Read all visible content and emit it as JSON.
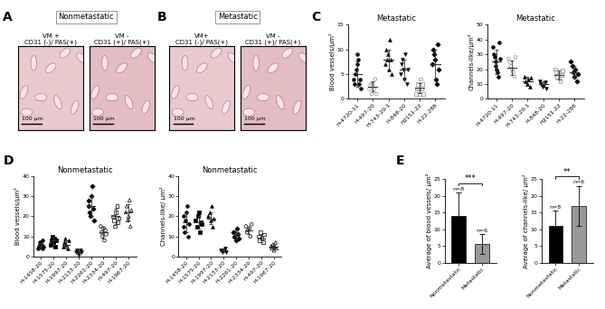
{
  "images": [
    {
      "panel": "A",
      "title": "Nonmetastatic",
      "images": [
        {
          "label": "VM +\nCD31 (-)/ PAS(+)",
          "scale_bar": "100 μm"
        },
        {
          "label": "VM -\nCD31 (+)/ PAS(+)",
          "scale_bar": "100 μm"
        }
      ]
    },
    {
      "panel": "B",
      "title": "Metastatic",
      "images": [
        {
          "label": "VM+\nCD31 (-)/ PAS(+)",
          "scale_bar": "100 μm"
        },
        {
          "label": "VM -\nCD31 (+)/ PAS(+)",
          "scale_bar": "100 μm"
        }
      ]
    }
  ],
  "chart_data": [
    {
      "panel": "C",
      "type": "dot_plot",
      "title": "Metastatic",
      "y_label": "Blood vessels/μm²",
      "ylim": [
        0,
        15
      ],
      "yticks": [
        0,
        5,
        10,
        15
      ],
      "series": [
        {
          "name": "H-4720-11",
          "marker": "circle",
          "color": "#000000",
          "values": [
            4,
            3,
            5,
            6,
            7,
            9,
            8,
            3,
            4,
            2
          ],
          "mean": 5,
          "sd": 2.5
        },
        {
          "name": "H-497-20",
          "marker": "open_circle",
          "color": "#8c8c8c",
          "values": [
            2,
            3,
            1,
            3,
            2,
            4,
            1
          ],
          "mean": 2.5,
          "sd": 1
        },
        {
          "name": "H-743-20-1",
          "marker": "triangle",
          "color": "#000000",
          "values": [
            7,
            10,
            8,
            9,
            6,
            12,
            8,
            5
          ],
          "mean": 8,
          "sd": 2
        },
        {
          "name": "H-848-20",
          "marker": "triangle_down",
          "color": "#000000",
          "values": [
            5,
            7,
            8,
            6,
            4,
            9,
            3,
            6
          ],
          "mean": 6,
          "sd": 2
        },
        {
          "name": "H2151-22",
          "marker": "open_square",
          "color": "#8c8c8c",
          "values": [
            1,
            2,
            3,
            2,
            1,
            4,
            2,
            3,
            1
          ],
          "mean": 2.2,
          "sd": 1
        },
        {
          "name": "H-22-288",
          "marker": "diamond",
          "color": "#000000",
          "values": [
            7,
            10,
            9,
            8,
            4,
            3,
            11,
            6
          ],
          "mean": 7,
          "sd": 3
        }
      ]
    },
    {
      "panel": "C",
      "type": "dot_plot",
      "title": "Metastatic",
      "y_label": "Channels-like/μm²",
      "ylim": [
        0,
        50
      ],
      "yticks": [
        0,
        10,
        20,
        30,
        40,
        50
      ],
      "series": [
        {
          "name": "H-4720-11",
          "marker": "circle",
          "color": "#000000",
          "values": [
            35,
            30,
            28,
            25,
            22,
            20,
            18,
            15,
            38,
            27
          ],
          "mean": 25,
          "sd": 8
        },
        {
          "name": "H-497-20",
          "marker": "open_circle",
          "color": "#8c8c8c",
          "values": [
            27,
            25,
            22,
            20,
            18,
            15,
            28
          ],
          "mean": 21,
          "sd": 5
        },
        {
          "name": "H-743-20-1",
          "marker": "triangle",
          "color": "#000000",
          "values": [
            15,
            12,
            10,
            13,
            8,
            14
          ],
          "mean": 12,
          "sd": 3
        },
        {
          "name": "H-848-20",
          "marker": "triangle_down",
          "color": "#000000",
          "values": [
            12,
            10,
            8,
            9,
            11,
            7
          ],
          "mean": 10,
          "sd": 2
        },
        {
          "name": "H2151-22",
          "marker": "open_square",
          "color": "#8c8c8c",
          "values": [
            20,
            18,
            15,
            17,
            14,
            12,
            16,
            19
          ],
          "mean": 16,
          "sd": 3
        },
        {
          "name": "H-22-288",
          "marker": "diamond",
          "color": "#000000",
          "values": [
            25,
            22,
            18,
            15,
            20,
            12,
            17
          ],
          "mean": 18,
          "sd": 4
        }
      ]
    },
    {
      "panel": "D",
      "type": "dot_plot",
      "title": "Nonmetastatic",
      "y_label": "Blood vessels/μm²",
      "ylim": [
        0,
        40
      ],
      "yticks": [
        0,
        10,
        20,
        30,
        40
      ],
      "series": [
        {
          "name": "H-1458-20",
          "marker": "circle",
          "color": "#000000",
          "values": [
            4,
            5,
            6,
            7,
            5,
            6,
            8,
            4,
            5
          ],
          "mean": 5.5,
          "sd": 1.2
        },
        {
          "name": "H-1575-20",
          "marker": "square",
          "color": "#000000",
          "values": [
            6,
            8,
            10,
            7,
            9,
            5,
            8
          ],
          "mean": 8,
          "sd": 2
        },
        {
          "name": "H-1997-20",
          "marker": "triangle",
          "color": "#000000",
          "values": [
            5,
            7,
            9,
            6,
            4,
            8
          ],
          "mean": 6,
          "sd": 2
        },
        {
          "name": "H-2133-20",
          "marker": "triangle_down",
          "color": "#000000",
          "values": [
            2,
            3,
            2,
            1,
            3,
            2
          ],
          "mean": 2,
          "sd": 1
        },
        {
          "name": "H-2261-20",
          "marker": "diamond",
          "color": "#000000",
          "values": [
            28,
            25,
            22,
            20,
            30,
            35,
            24,
            18
          ],
          "mean": 25,
          "sd": 5
        },
        {
          "name": "H-2334-20",
          "marker": "open_circle",
          "color": "#000000",
          "values": [
            15,
            12,
            10,
            14,
            8,
            13,
            11
          ],
          "mean": 12,
          "sd": 3
        },
        {
          "name": "H-497-20",
          "marker": "open_square",
          "color": "#000000",
          "values": [
            20,
            18,
            15,
            22,
            25,
            17,
            19
          ],
          "mean": 20,
          "sd": 4
        },
        {
          "name": "H-1967-20",
          "marker": "open_triangle",
          "color": "#000000",
          "values": [
            22,
            25,
            18,
            20,
            28,
            15,
            23
          ],
          "mean": 22,
          "sd": 4
        }
      ]
    },
    {
      "panel": "D",
      "type": "dot_plot",
      "title": "Nonmetastatic",
      "y_label": "Channels-like/ μm²",
      "ylim": [
        0,
        40
      ],
      "yticks": [
        0,
        10,
        20,
        30,
        40
      ],
      "series": [
        {
          "name": "H-1458-20",
          "marker": "circle",
          "color": "#000000",
          "values": [
            20,
            15,
            12,
            18,
            22,
            25,
            10,
            16
          ],
          "mean": 17,
          "sd": 5
        },
        {
          "name": "H-1575-20",
          "marker": "square",
          "color": "#000000",
          "values": [
            18,
            15,
            20,
            22,
            12,
            17,
            16
          ],
          "mean": 17,
          "sd": 3
        },
        {
          "name": "H-1997-20",
          "marker": "triangle",
          "color": "#000000",
          "values": [
            20,
            22,
            18,
            25,
            15,
            19
          ],
          "mean": 19,
          "sd": 3
        },
        {
          "name": "H-2133-20",
          "marker": "triangle_down",
          "color": "#000000",
          "values": [
            3,
            2,
            3,
            4,
            2
          ],
          "mean": 3,
          "sd": 1
        },
        {
          "name": "H-2261-20",
          "marker": "diamond",
          "color": "#000000",
          "values": [
            12,
            10,
            8,
            14,
            11,
            9
          ],
          "mean": 11,
          "sd": 2
        },
        {
          "name": "H-2334-20",
          "marker": "open_circle",
          "color": "#000000",
          "values": [
            15,
            12,
            13,
            14,
            10,
            16
          ],
          "mean": 13,
          "sd": 2
        },
        {
          "name": "H-497-20",
          "marker": "open_square",
          "color": "#000000",
          "values": [
            10,
            8,
            12,
            9,
            7,
            11
          ],
          "mean": 9,
          "sd": 2
        },
        {
          "name": "H-1967-20",
          "marker": "open_triangle",
          "color": "#000000",
          "values": [
            5,
            4,
            6,
            3,
            5,
            7,
            4
          ],
          "mean": 5,
          "sd": 1
        }
      ]
    },
    {
      "panel": "E",
      "type": "bar",
      "y_label": "Average of blood vessels/ μm²",
      "categories": [
        "Nonmetastatic",
        "Metastatic"
      ],
      "values": [
        14,
        5.5
      ],
      "errors": [
        7,
        3
      ],
      "colors": [
        "#000000",
        "#999999"
      ],
      "annotations": [
        "n=8",
        "n=6"
      ],
      "significance": "***",
      "ylim": [
        0,
        25
      ],
      "yticks": [
        0,
        5,
        10,
        15,
        20,
        25
      ]
    },
    {
      "panel": "E",
      "type": "bar",
      "y_label": "Average of channels-like/ μm²",
      "categories": [
        "Nonmetastatic",
        "Metastatic"
      ],
      "values": [
        11,
        17
      ],
      "errors": [
        4.5,
        6
      ],
      "colors": [
        "#000000",
        "#999999"
      ],
      "annotations": [
        "n=8",
        "n=6"
      ],
      "significance": "**",
      "ylim": [
        0,
        25
      ],
      "yticks": [
        0,
        5,
        10,
        15,
        20,
        25
      ]
    }
  ]
}
